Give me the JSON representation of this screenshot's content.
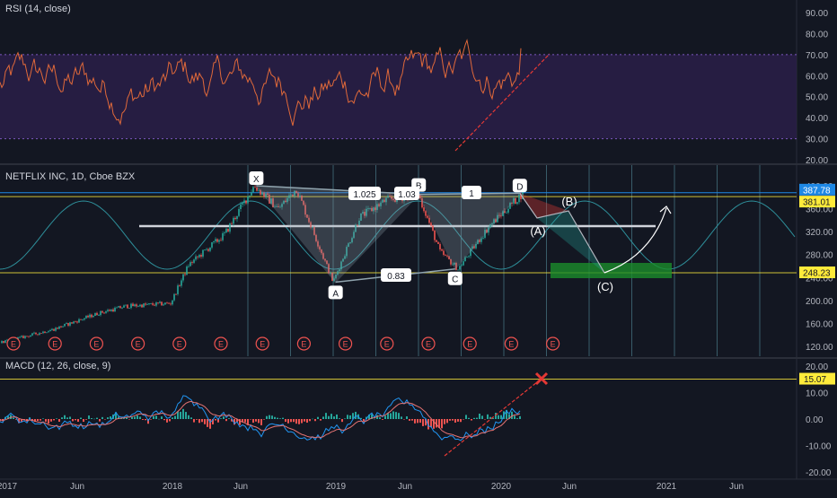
{
  "rsi": {
    "title": "RSI (14, close)",
    "axis_ticks": [
      "90.00",
      "80.00",
      "70.00",
      "60.00",
      "50.00",
      "40.00",
      "30.00",
      "20.00"
    ],
    "current_value": "73",
    "line_color": "#e0693a",
    "band_color": "#2a1e48"
  },
  "price": {
    "title": "NETFLIX INC, 1D, Cboe BZX",
    "axis_ticks": [
      "400.00",
      "360.00",
      "320.00",
      "280.00",
      "240.00",
      "200.00",
      "160.00",
      "120.00"
    ],
    "price_badges": [
      {
        "label": "387.78",
        "color": "#1e88e5"
      },
      {
        "label": "381.01",
        "color": "#ffeb3b"
      },
      {
        "label": "248.23",
        "color": "#ffeb3b"
      }
    ],
    "pattern_points": [
      {
        "label": "X",
        "date": "2018-06-25",
        "value": 400
      },
      {
        "label": "A",
        "date": "2018-12-24",
        "value": 232
      },
      {
        "label": "B",
        "date": "2019-07-01",
        "value": 385
      },
      {
        "label": "C",
        "date": "2019-09-24",
        "value": 255
      },
      {
        "label": "D",
        "date": "2020-02-20",
        "value": 387
      }
    ],
    "ratio_labels": [
      "1.025",
      "1.03",
      "1",
      "0.83"
    ],
    "projection_labels": [
      "(A)",
      "(B)",
      "(C)"
    ],
    "earnings_marker": "E",
    "earnings_count": 14,
    "pattern_color": "#90a4ae",
    "projection_box_color": "#1b8c2c"
  },
  "macd": {
    "title": "MACD (12, 26, close, 9)",
    "axis_ticks": [
      "20.00",
      "10.00",
      "0.00",
      "-10.00",
      "-20.00"
    ],
    "price_badge": "15.07",
    "macd_color": "#2196f3",
    "signal_color": "#e57373",
    "hist_pos_color": "#26a69a",
    "hist_neg_color": "#ef5350"
  },
  "time_axis": {
    "labels": [
      "2017",
      "Jun",
      "2018",
      "Jun",
      "2019",
      "Jun",
      "2020",
      "Jun",
      "2021",
      "Jun"
    ]
  }
}
